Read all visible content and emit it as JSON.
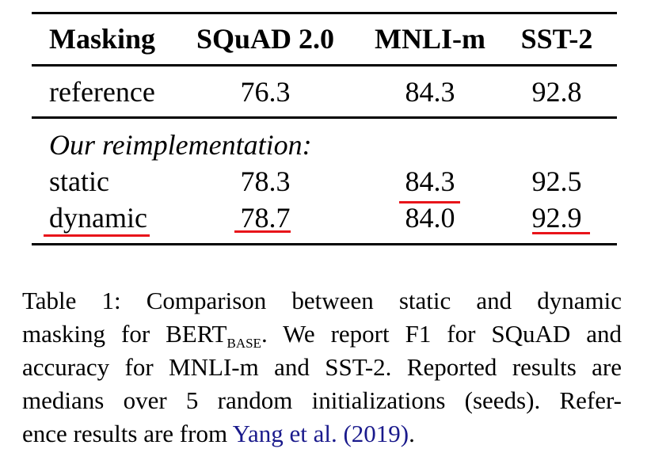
{
  "table": {
    "headers": [
      "Masking",
      "SQuAD 2.0",
      "MNLI-m",
      "SST-2"
    ],
    "reference": {
      "label": "reference",
      "values": [
        "76.3",
        "84.3",
        "92.8"
      ]
    },
    "section_label": "Our reimplementation:",
    "rows": [
      {
        "label": "static",
        "values": [
          "78.3",
          "84.3",
          "92.5"
        ],
        "underlined": [
          false,
          false,
          true,
          false
        ]
      },
      {
        "label": "dynamic",
        "values": [
          "78.7",
          "84.0",
          "92.9"
        ],
        "underlined": [
          true,
          true,
          false,
          true
        ]
      }
    ],
    "underline_color": "#e8141a"
  },
  "caption": {
    "line1": "Table 1:  Comparison between static and dynamic",
    "line2_pre": "masking for BERT",
    "line2_sub": "BASE",
    "line2_post": ".  We report F1 for SQuAD and",
    "line3": "accuracy for MNLI-m and SST-2. Reported results are",
    "line4": "medians over 5 random initializations (seeds).  Refer-",
    "line5_pre": "ence results are from ",
    "line5_link_author": "Yang et al.",
    "line5_link_year": "(2019)",
    "line5_post": ".",
    "link_color": "#1a1a8c"
  }
}
